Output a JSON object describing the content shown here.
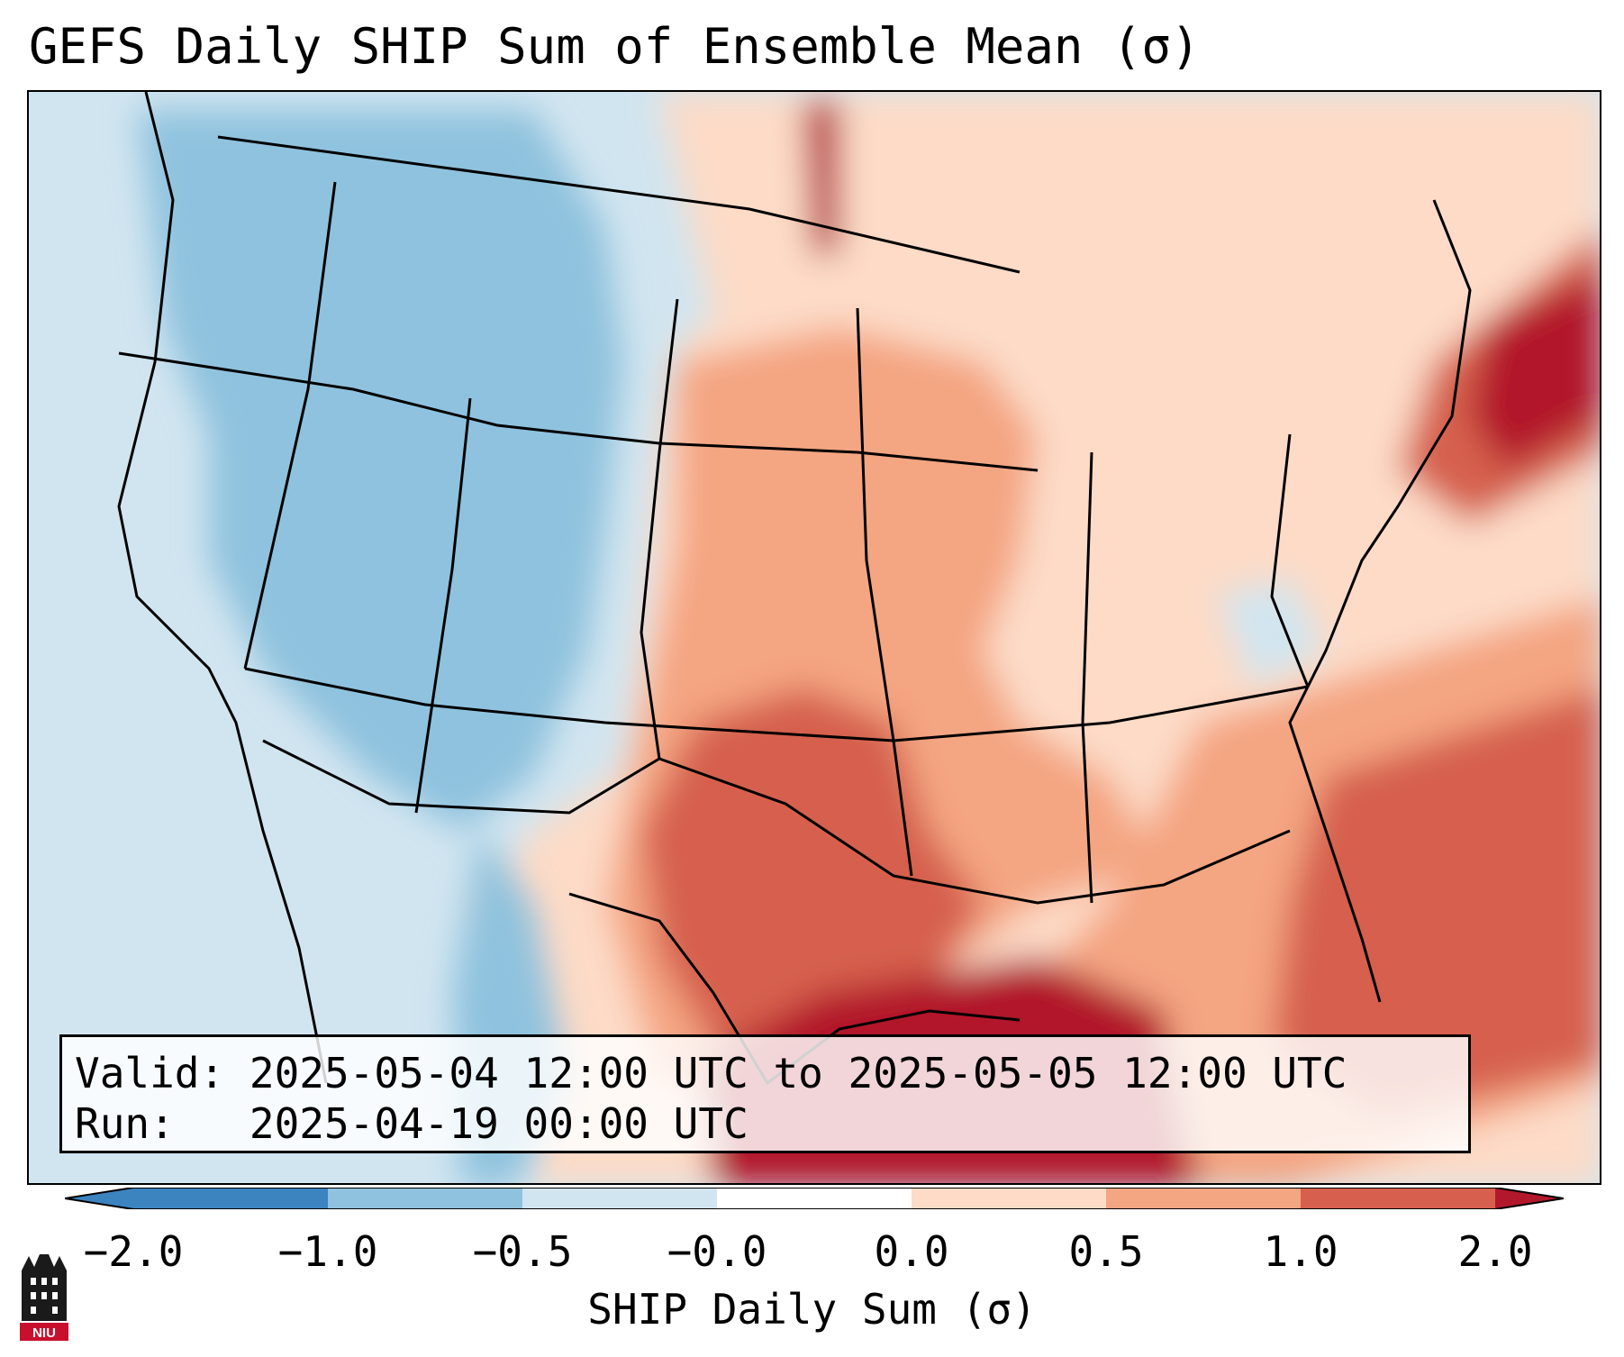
{
  "title": "GEFS Daily SHIP Sum of Ensemble Mean (σ)",
  "info": {
    "valid_label": "Valid:",
    "valid_value": "2025-05-04 12:00 UTC to 2025-05-05 12:00 UTC",
    "run_label": "Run:",
    "run_value": "2025-04-19 00:00 UTC"
  },
  "colorbar": {
    "label": "SHIP Daily Sum (σ)",
    "ticks": [
      "−2.0",
      "−1.0",
      "−0.5",
      "−0.0",
      "0.0",
      "0.5",
      "1.0",
      "2.0"
    ],
    "colors": [
      "#3b84c0",
      "#8fc2de",
      "#d1e5f0",
      "#ffffff",
      "#fddbc7",
      "#f4a582",
      "#d6604d",
      "#b2182b"
    ]
  },
  "logo": {
    "text": "NIU",
    "icon": "university-tower-logo"
  }
}
